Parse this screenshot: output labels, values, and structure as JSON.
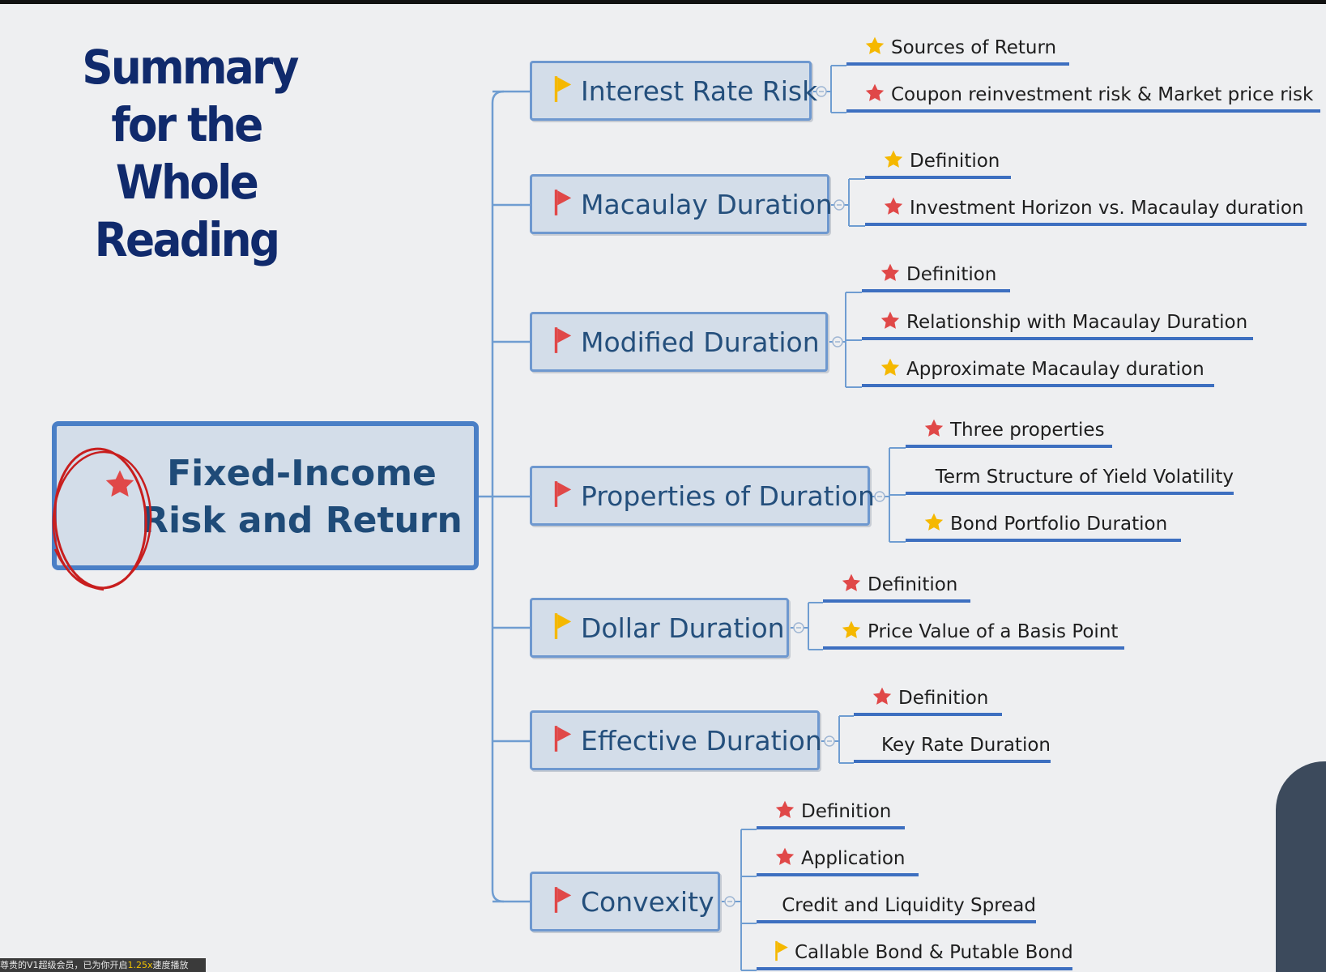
{
  "title": {
    "lines": [
      "Summary",
      "for the",
      "Whole",
      "Reading"
    ]
  },
  "central": {
    "lines": [
      "Fixed-Income",
      "Risk and Return"
    ]
  },
  "colors": {
    "red_marker": "#e04848",
    "gold_marker": "#f5b800",
    "connector": "#6f9dd1",
    "underline": "#3d6fc0",
    "title": "#102a6c"
  },
  "topics": [
    {
      "label": "Interest Rate Risk",
      "flag": "gold",
      "children": [
        {
          "label": "Sources of Return",
          "marker": "gold-star"
        },
        {
          "label": "Coupon reinvestment risk & Market price risk",
          "marker": "red-star"
        }
      ]
    },
    {
      "label": "Macaulay Duration",
      "flag": "red",
      "children": [
        {
          "label": "Definition",
          "marker": "gold-star"
        },
        {
          "label": "Investment Horizon vs. Macaulay duration",
          "marker": "red-star"
        }
      ]
    },
    {
      "label": "Modified Duration",
      "flag": "red",
      "children": [
        {
          "label": "Definition",
          "marker": "red-star"
        },
        {
          "label": "Relationship with Macaulay Duration",
          "marker": "red-star"
        },
        {
          "label": "Approximate Macaulay duration",
          "marker": "gold-star"
        }
      ]
    },
    {
      "label": "Properties of Duration",
      "flag": "red",
      "children": [
        {
          "label": "Three properties",
          "marker": "red-star"
        },
        {
          "label": "Term Structure of Yield Volatility",
          "marker": "none"
        },
        {
          "label": "Bond Portfolio Duration",
          "marker": "gold-star"
        }
      ]
    },
    {
      "label": "Dollar Duration",
      "flag": "gold",
      "children": [
        {
          "label": "Definition",
          "marker": "red-star"
        },
        {
          "label": "Price Value of a Basis Point",
          "marker": "gold-star"
        }
      ]
    },
    {
      "label": "Effective Duration",
      "flag": "red",
      "children": [
        {
          "label": "Definition",
          "marker": "red-star"
        },
        {
          "label": "Key Rate Duration",
          "marker": "none"
        }
      ]
    },
    {
      "label": "Convexity",
      "flag": "red",
      "children": [
        {
          "label": "Definition",
          "marker": "red-star"
        },
        {
          "label": "Application",
          "marker": "red-star"
        },
        {
          "label": "Credit and Liquidity Spread",
          "marker": "none"
        },
        {
          "label": "Callable Bond & Putable Bond",
          "marker": "gold-flag"
        }
      ]
    }
  ],
  "status_bar": {
    "text_before": "尊贵的V1超级会员，已为你开启",
    "speed": "1.25x",
    "text_after": "速度播放"
  }
}
